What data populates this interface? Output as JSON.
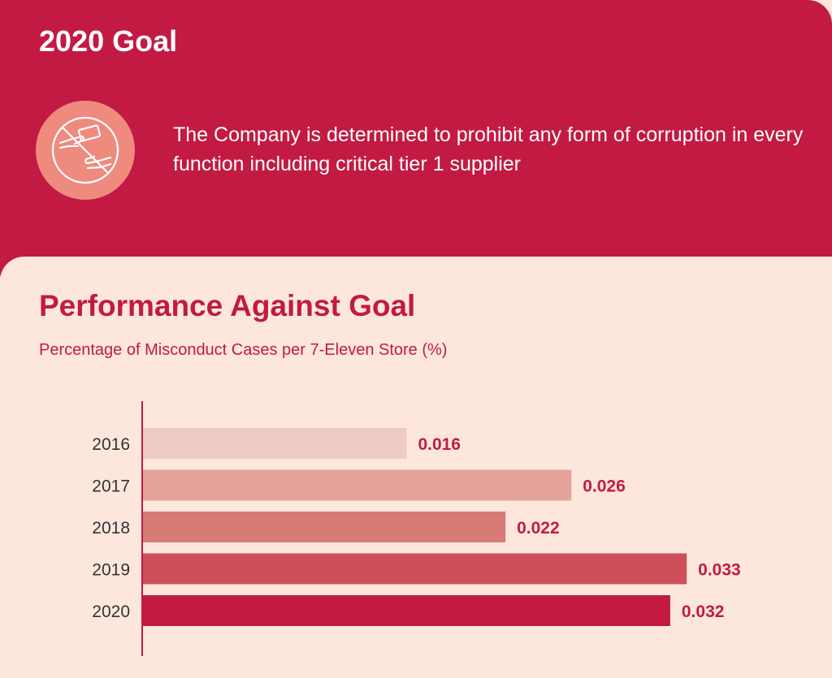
{
  "goal": {
    "title": "2020 Goal",
    "icon": "no-bribery-icon",
    "text": "The Company is determined to prohibit any form of corruption in every function including critical tier 1 supplier"
  },
  "performance": {
    "title": "Performance Against Goal",
    "subtitle": "Percentage of Misconduct Cases per 7-Eleven Store (%)"
  },
  "colors": {
    "brand": "#c21a43",
    "panel_background": "#fde7dd",
    "icon_circle": "#ef8a7f"
  },
  "chart_data": {
    "type": "bar",
    "orientation": "horizontal",
    "categories": [
      "2016",
      "2017",
      "2018",
      "2019",
      "2020"
    ],
    "values": [
      0.016,
      0.026,
      0.022,
      0.033,
      0.032
    ],
    "value_labels": [
      "0.016",
      "0.026",
      "0.022",
      "0.033",
      "0.032"
    ],
    "bar_colors": [
      "#efcac3",
      "#e3a39a",
      "#d87a76",
      "#cd4f5a",
      "#c21a43"
    ],
    "xlim": [
      0,
      0.036
    ],
    "grid": false,
    "legend": "none"
  }
}
